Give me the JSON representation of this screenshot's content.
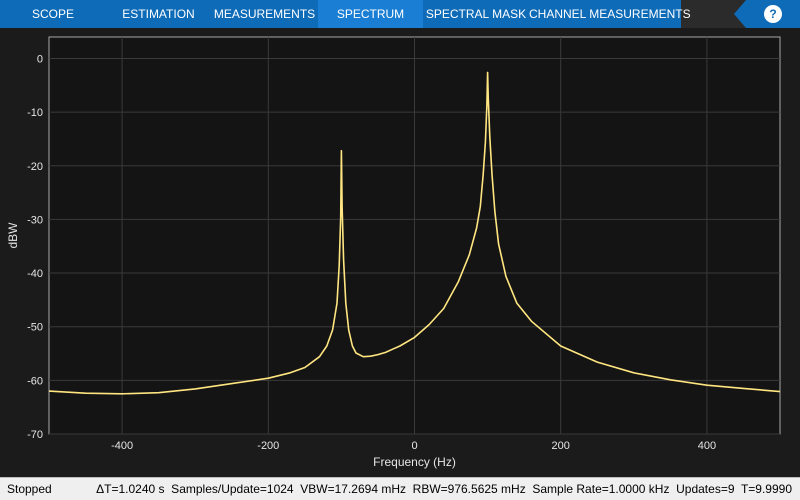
{
  "toolstrip": {
    "tabs": [
      {
        "label": "SCOPE",
        "active": false
      },
      {
        "label": "ESTIMATION",
        "active": false
      },
      {
        "label": "MEASUREMENTS",
        "active": false
      },
      {
        "label": "SPECTRUM",
        "active": true
      },
      {
        "label": "SPECTRAL MASK",
        "active": false
      },
      {
        "label": "CHANNEL MEASUREMENTS",
        "active": false
      }
    ],
    "help_label": "?"
  },
  "chart_data": {
    "type": "line",
    "xlabel": "Frequency (Hz)",
    "ylabel": "dBW",
    "xlim": [
      -500,
      500
    ],
    "ylim": [
      -70,
      4
    ],
    "xticks": [
      -400,
      -200,
      0,
      200,
      400
    ],
    "yticks": [
      0,
      -10,
      -20,
      -30,
      -40,
      -50,
      -60,
      -70
    ],
    "grid": true,
    "series": [
      {
        "color": "#ffe680",
        "x": [
          -500,
          -450,
          -400,
          -350,
          -300,
          -250,
          -200,
          -170,
          -150,
          -130,
          -120,
          -112,
          -106,
          -103,
          -101,
          -100,
          -99,
          -97,
          -94,
          -90,
          -85,
          -80,
          -70,
          -60,
          -50,
          -40,
          -30,
          -20,
          0,
          20,
          40,
          60,
          75,
          85,
          90,
          94,
          97,
          99,
          100,
          101,
          103,
          106,
          110,
          115,
          125,
          140,
          160,
          200,
          250,
          300,
          350,
          400,
          450,
          500
        ],
        "y": [
          -62.0,
          -62.4,
          -62.5,
          -62.3,
          -61.6,
          -60.6,
          -59.6,
          -58.6,
          -57.6,
          -55.6,
          -53.6,
          -50.6,
          -45.6,
          -38.6,
          -29.6,
          -17.2,
          -27.6,
          -37.6,
          -45.6,
          -50.6,
          -53.6,
          -54.9,
          -55.6,
          -55.5,
          -55.2,
          -54.8,
          -54.2,
          -53.6,
          -52.0,
          -49.6,
          -46.6,
          -41.6,
          -36.6,
          -31.6,
          -27.6,
          -21.6,
          -15.6,
          -8.6,
          -2.6,
          -7.6,
          -14.6,
          -21.6,
          -28.6,
          -34.6,
          -40.6,
          -45.6,
          -49.0,
          -53.6,
          -56.6,
          -58.6,
          -59.9,
          -60.9,
          -61.5,
          -62.1
        ]
      }
    ]
  },
  "status": {
    "state": "Stopped",
    "details": "ΔT=1.0240 s  Samples/Update=1024  VBW=17.2694 mHz  RBW=976.5625 mHz  Sample Rate=1.0000 kHz  Updates=9  T=9.9990"
  }
}
